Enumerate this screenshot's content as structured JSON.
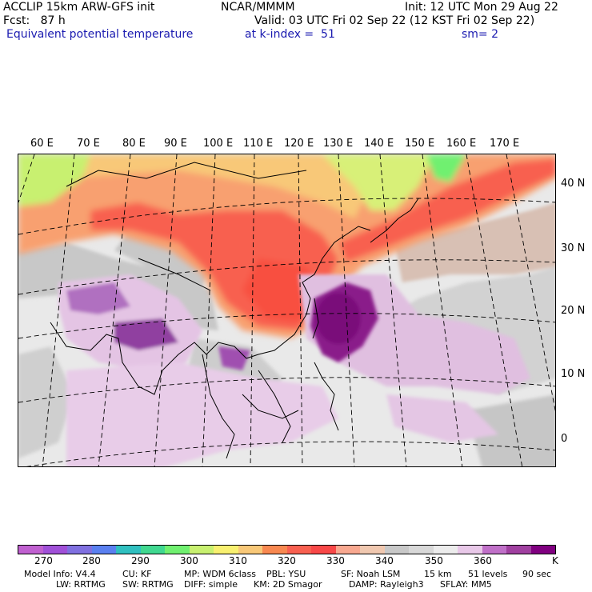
{
  "header": {
    "model_line": "ACCLIP 15km ARW-GFS init",
    "org": "NCAR/MMMM",
    "init": "Init: 12 UTC Mon 29 Aug 22",
    "fcst": "Fcst:   87 h",
    "valid": "Valid: 03 UTC Fri 02 Sep 22 (12 KST Fri 02 Sep 22)",
    "field": "Equivalent potential temperature",
    "level": "at k-index =  51",
    "smooth": "sm= 2"
  },
  "map": {
    "lon_labels": [
      "60 E",
      "70 E",
      "80 E",
      "90 E",
      "100 E",
      "110 E",
      "120 E",
      "130 E",
      "140 E",
      "150 E",
      "160 E",
      "170 E"
    ],
    "lat_labels": [
      "40 N",
      "30 N",
      "20 N",
      "10 N",
      "0"
    ]
  },
  "colorbar": {
    "colors": [
      "#c060d0",
      "#a050d8",
      "#8070e0",
      "#5a80f0",
      "#30c0c0",
      "#40d890",
      "#70f070",
      "#c8f070",
      "#f8f070",
      "#f8c878",
      "#f88850",
      "#f86050",
      "#f84848",
      "#f8a890",
      "#f0c8b0",
      "#c8c8c8",
      "#d8d8d8",
      "#ececec",
      "#e8c8e8",
      "#c070c8",
      "#a040a0",
      "#800080"
    ],
    "labels": [
      "270",
      "280",
      "290",
      "300",
      "310",
      "320",
      "330",
      "340",
      "350",
      "360"
    ],
    "unit": "K"
  },
  "footer": {
    "line1": [
      "Model Info: V4.4",
      "CU: KF",
      "MP: WDM 6class",
      "PBL: YSU",
      "SF: Noah LSM",
      "15 km",
      "51 levels",
      "90 sec"
    ],
    "line2": [
      "LW: RRTMG",
      "SW: RRTMG",
      "DIFF: simple",
      "KM: 2D Smagor",
      "DAMP: Rayleigh3",
      "SFLAY: MM5"
    ]
  }
}
